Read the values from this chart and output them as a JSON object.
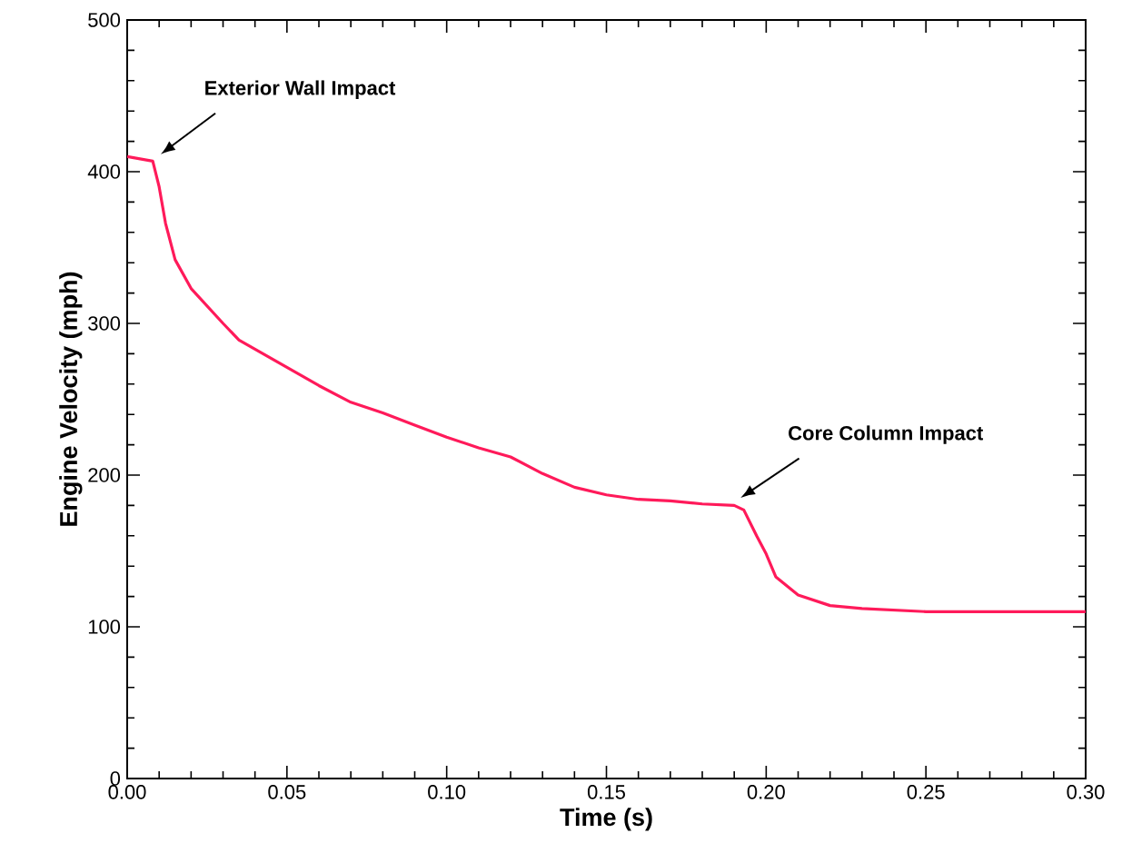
{
  "chart_data": {
    "type": "line",
    "xlabel": "Time  (s)",
    "ylabel": "Engine Velocity  (mph)",
    "xlim": [
      0,
      0.3
    ],
    "ylim": [
      0,
      500
    ],
    "xticks": [
      {
        "value": 0,
        "label": "0.00"
      },
      {
        "value": 0.05,
        "label": "0.05"
      },
      {
        "value": 0.1,
        "label": "0.10"
      },
      {
        "value": 0.15,
        "label": "0.15"
      },
      {
        "value": 0.2,
        "label": "0.20"
      },
      {
        "value": 0.25,
        "label": "0.25"
      },
      {
        "value": 0.3,
        "label": "0.30"
      }
    ],
    "yticks": [
      0,
      100,
      200,
      300,
      400,
      500
    ],
    "series": [
      {
        "color": "#ff1a5a",
        "x": [
          0,
          0.008,
          0.01,
          0.012,
          0.015,
          0.02,
          0.03,
          0.035,
          0.05,
          0.06,
          0.07,
          0.08,
          0.09,
          0.1,
          0.11,
          0.12,
          0.13,
          0.14,
          0.15,
          0.16,
          0.17,
          0.18,
          0.19,
          0.193,
          0.197,
          0.2,
          0.203,
          0.21,
          0.22,
          0.23,
          0.25,
          0.3
        ],
        "values": [
          410,
          407,
          390,
          366,
          342,
          323,
          300,
          289,
          271,
          259,
          248,
          241,
          233,
          225,
          218,
          212,
          201,
          192,
          187,
          184,
          183,
          181,
          180,
          177,
          160,
          148,
          133,
          121,
          114,
          112,
          110,
          110
        ]
      }
    ],
    "annotations": [
      "Exterior Wall Impact",
      "Core Column Impact"
    ],
    "grid": false,
    "marker": "none",
    "line_style": "solid"
  }
}
